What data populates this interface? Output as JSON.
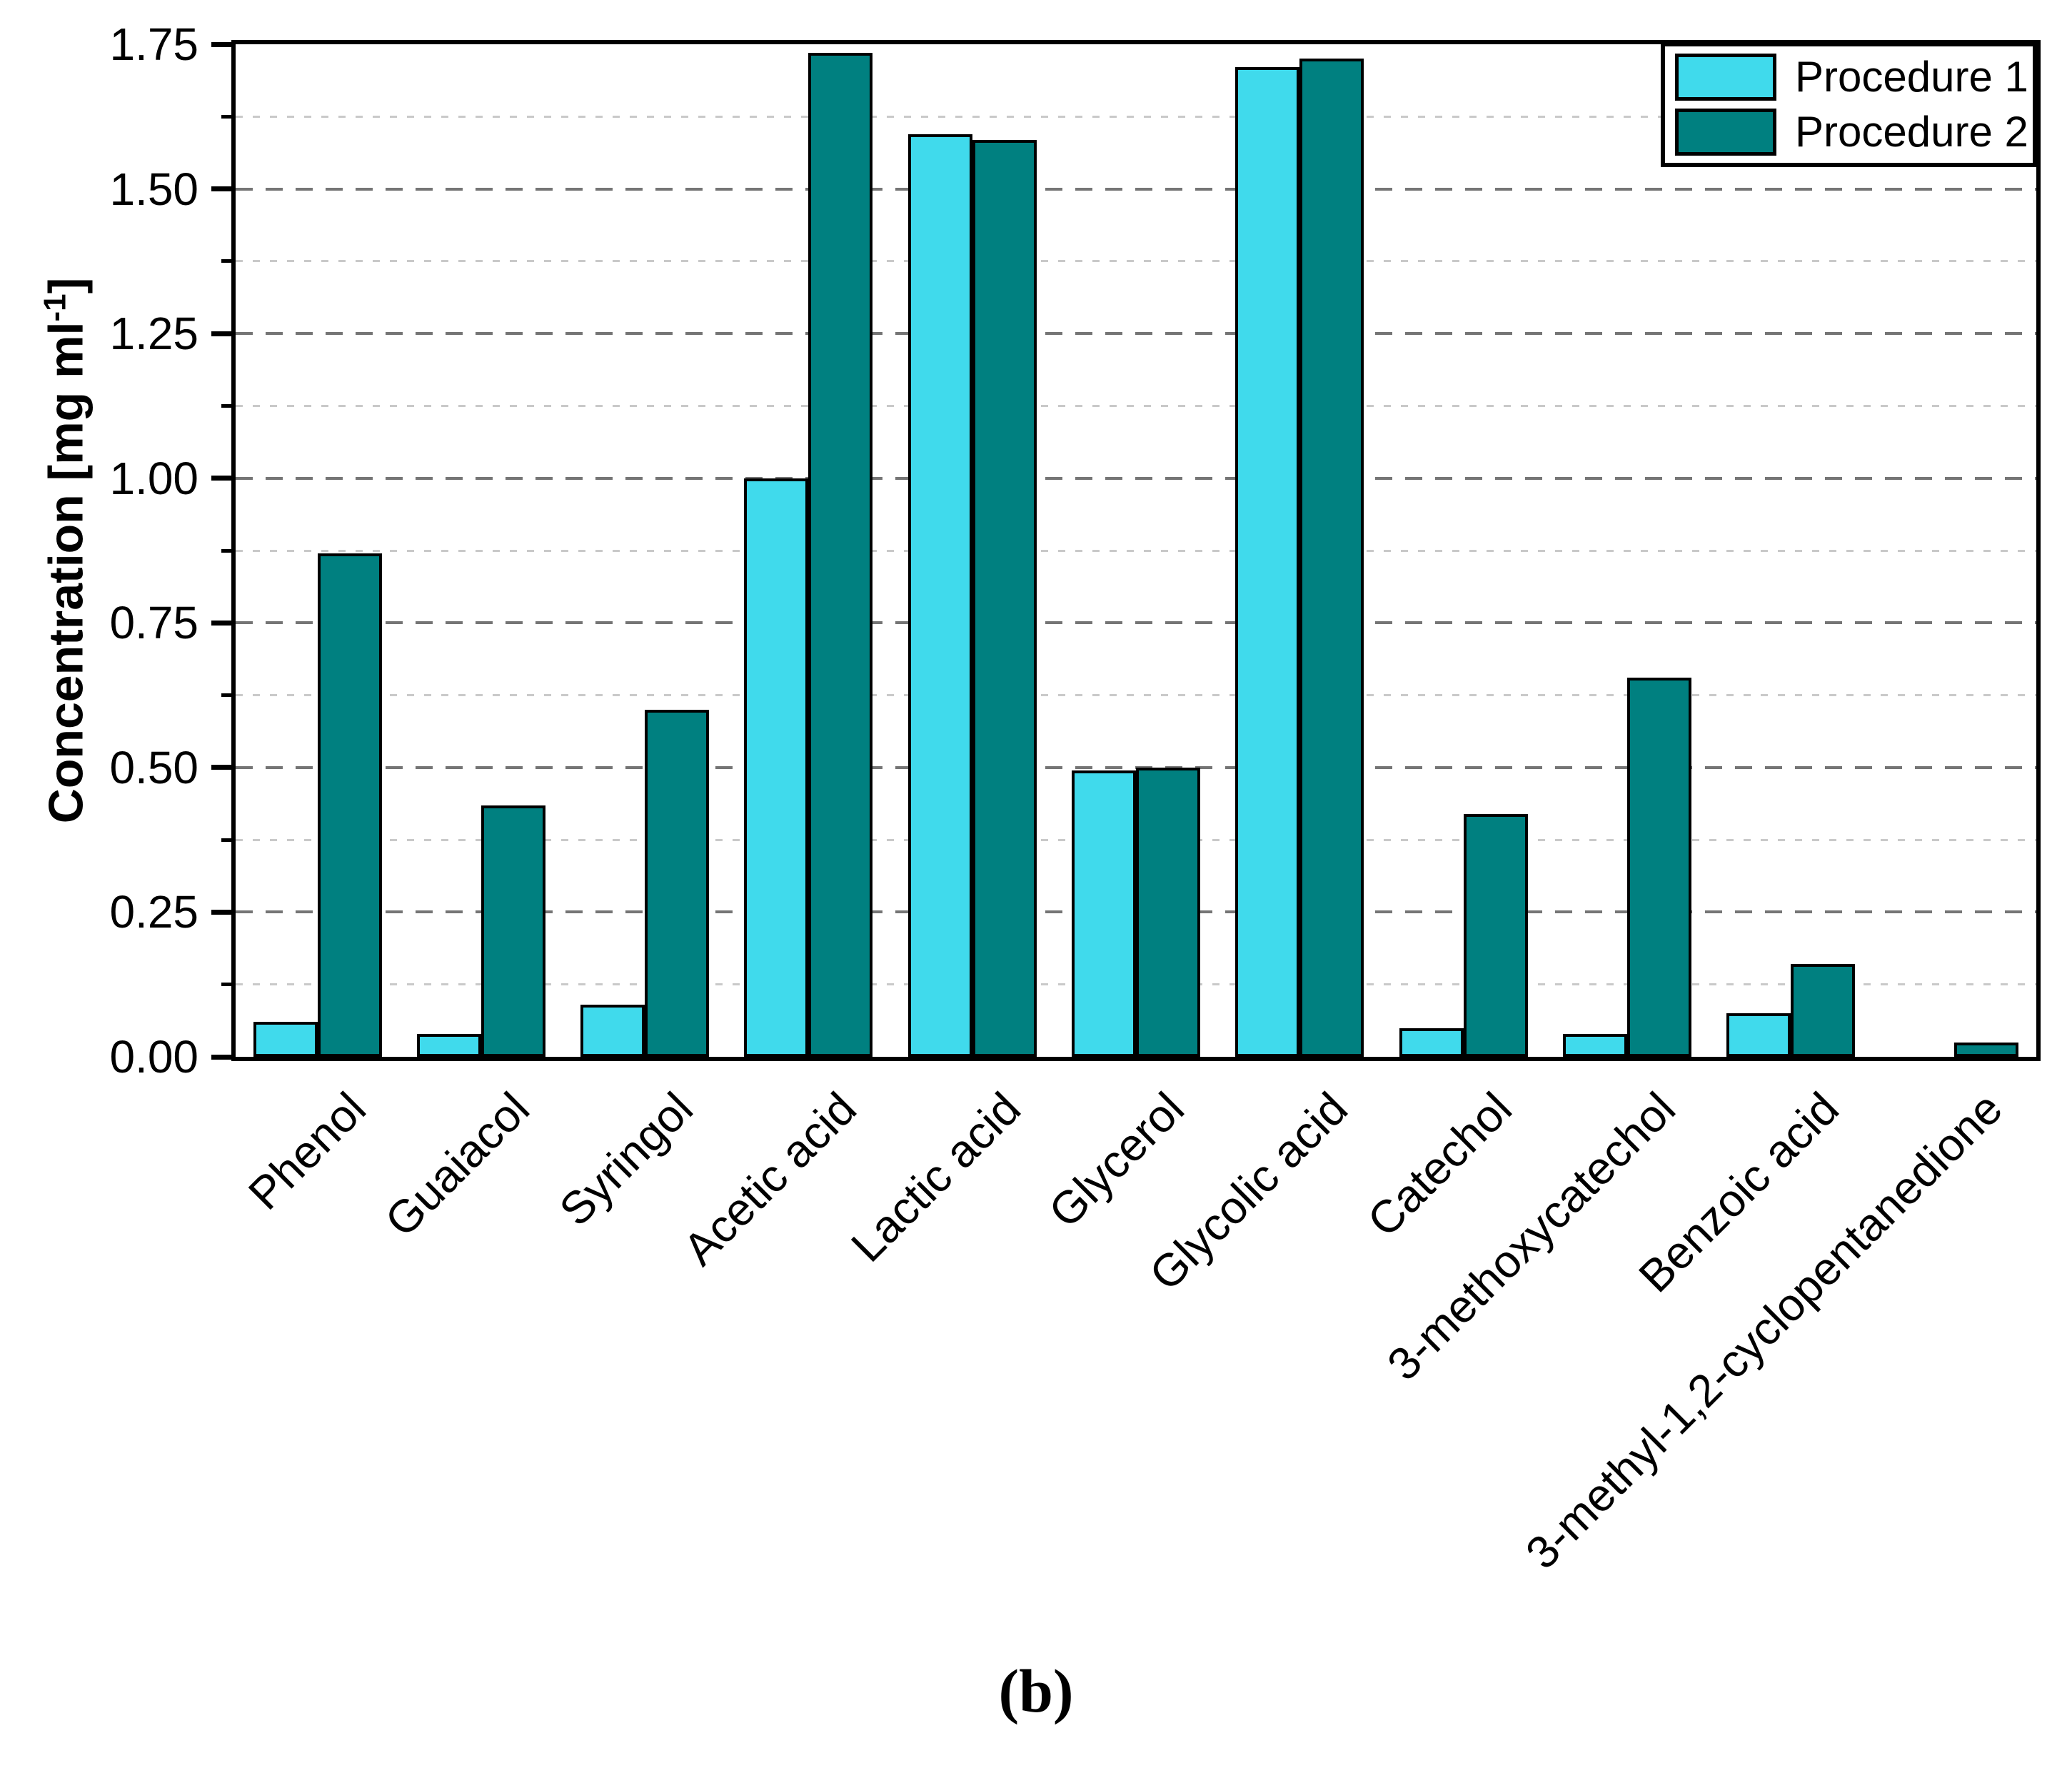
{
  "figure": {
    "caption": "(b)"
  },
  "chart_data": {
    "type": "bar",
    "title": "",
    "ylabel": "Concentration [mg ml⁻¹]",
    "ylabel_parts": {
      "prefix": "Concentration [mg ml",
      "superscript": "-1",
      "suffix": "]"
    },
    "xlabel": "",
    "ylim": [
      0,
      1.75
    ],
    "ytick_interval": 0.25,
    "yminor_interval": 0.125,
    "ytick_labels": [
      "0.00",
      "0.25",
      "0.50",
      "0.75",
      "1.00",
      "1.25",
      "1.50",
      "1.75"
    ],
    "grid": {
      "horizontal_major": "dashed",
      "horizontal_minor": "dotted",
      "vertical": "none"
    },
    "legend": {
      "position": "top-right",
      "entries": [
        "Procedure 1",
        "Procedure 2"
      ]
    },
    "categories": [
      "Phenol",
      "Guaiacol",
      "Syringol",
      "Acetic acid",
      "Lactic acid",
      "Glycerol",
      "Glycolic acid",
      "Catechol",
      "3-methoxycatechol",
      "Benzoic acid",
      "3-methyl-1,2-cyclopentanedione"
    ],
    "series": [
      {
        "name": "Procedure 1",
        "color": "#40DAEC",
        "values": [
          0.06,
          0.04,
          0.09,
          1.0,
          1.595,
          0.495,
          1.71,
          0.05,
          0.04,
          0.075,
          0
        ]
      },
      {
        "name": "Procedure 2",
        "color": "#008080",
        "values": [
          0.87,
          0.435,
          0.6,
          1.735,
          1.585,
          0.5,
          1.725,
          0.42,
          0.655,
          0.16,
          0.025
        ]
      }
    ]
  },
  "colors": {
    "procedure1": "#40DAEC",
    "procedure2": "#008080",
    "axis_frame": "#000000",
    "grid_major": "#757575",
    "grid_minor": "#c9c9c9",
    "background": "#ffffff",
    "text": "#000000"
  }
}
